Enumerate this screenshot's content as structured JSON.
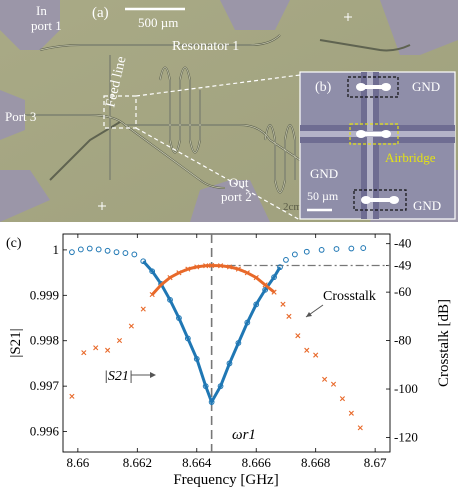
{
  "panel_a": {
    "label": "(a)",
    "scale_bar": "500 µm",
    "labels": {
      "in_port_1": [
        "In",
        "port 1"
      ],
      "resonator_1": "Resonator 1",
      "feed_line": "Feed line",
      "port_3": "Port 3",
      "out_port_2": [
        "Out",
        "port 2"
      ],
      "chip_text": "2cm"
    }
  },
  "panel_b": {
    "label": "(b)",
    "gnd": "GND",
    "airbridge": "Airbridge",
    "scale_bar": "50 µm"
  },
  "panel_c": {
    "label": "(c)"
  },
  "chart_data": {
    "type": "scatter",
    "xlabel": "Frequency [GHz]",
    "ylabel_left": "|S21|",
    "ylabel_right": "Crosstalk [dB]",
    "xlim": [
      8.6595,
      8.6705
    ],
    "ylim_left": [
      0.99555,
      1.00035
    ],
    "ylim_right": [
      -126,
      -36
    ],
    "x_ticks": [
      8.66,
      8.662,
      8.664,
      8.666,
      8.668,
      8.67
    ],
    "x_tick_labels": [
      "8.66",
      "8.662",
      "8.664",
      "8.666",
      "8.668",
      "8.67"
    ],
    "y_left_ticks": [
      0.996,
      0.997,
      0.998,
      0.999,
      1
    ],
    "y_left_tick_labels": [
      "0.996",
      "0.997",
      "0.998",
      "0.999",
      "1"
    ],
    "y_right_ticks": [
      -120,
      -100,
      -80,
      -60,
      -49,
      -40
    ],
    "y_right_tick_labels": [
      "-120",
      "-100",
      "-80",
      "-60",
      "-49",
      "-40"
    ],
    "annotations": {
      "crosstalk": "Crosstalk",
      "s21": "|S21|",
      "omega": "ωr1"
    },
    "resonance_x": 8.6645,
    "crosstalk_peak_db": -49,
    "colors": {
      "s21": "#1f77b4",
      "crosstalk": "#e8692a"
    },
    "series": [
      {
        "name": "|S21|",
        "axis": "left",
        "marker": "circle",
        "points": [
          [
            8.6598,
            0.99995
          ],
          [
            8.6601,
            1.00001
          ],
          [
            8.6604,
            1.00003
          ],
          [
            8.6607,
            1.00001
          ],
          [
            8.661,
            0.99998
          ],
          [
            8.6613,
            0.99995
          ],
          [
            8.6616,
            0.99993
          ],
          [
            8.6619,
            0.9999
          ],
          [
            8.6622,
            0.99975
          ],
          [
            8.6625,
            0.99953
          ],
          [
            8.6628,
            0.99925
          ],
          [
            8.6631,
            0.9989
          ],
          [
            8.6634,
            0.9985
          ],
          [
            8.6637,
            0.99805
          ],
          [
            8.664,
            0.9976
          ],
          [
            8.6643,
            0.997
          ],
          [
            8.6645,
            0.99665
          ],
          [
            8.6648,
            0.997
          ],
          [
            8.6651,
            0.9975
          ],
          [
            8.6654,
            0.99795
          ],
          [
            8.6657,
            0.9984
          ],
          [
            8.666,
            0.9988
          ],
          [
            8.6663,
            0.99912
          ],
          [
            8.6666,
            0.9994
          ],
          [
            8.6668,
            0.99962
          ],
          [
            8.667,
            0.99978
          ],
          [
            8.6673,
            0.9999
          ],
          [
            8.6677,
            0.99996
          ],
          [
            8.6682,
            1.0
          ],
          [
            8.6687,
            1.00002
          ],
          [
            8.6692,
            1.00003
          ],
          [
            8.6696,
            1.00004
          ]
        ]
      },
      {
        "name": "Crosstalk",
        "axis": "right",
        "marker": "x",
        "points": [
          [
            8.6598,
            -103
          ],
          [
            8.6602,
            -85
          ],
          [
            8.6606,
            -83
          ],
          [
            8.661,
            -84
          ],
          [
            8.6614,
            -80
          ],
          [
            8.6618,
            -74
          ],
          [
            8.6622,
            -67
          ],
          [
            8.6625,
            -61
          ],
          [
            8.6628,
            -57
          ],
          [
            8.6631,
            -54
          ],
          [
            8.6634,
            -52
          ],
          [
            8.6637,
            -50.5
          ],
          [
            8.664,
            -49.6
          ],
          [
            8.6643,
            -49.1
          ],
          [
            8.6645,
            -49
          ],
          [
            8.6648,
            -49.1
          ],
          [
            8.6651,
            -49.6
          ],
          [
            8.6654,
            -50.5
          ],
          [
            8.6657,
            -52
          ],
          [
            8.666,
            -54
          ],
          [
            8.6663,
            -57
          ],
          [
            8.6666,
            -60
          ],
          [
            8.6669,
            -65
          ],
          [
            8.6671,
            -70
          ],
          [
            8.6674,
            -78
          ],
          [
            8.6677,
            -84
          ],
          [
            8.668,
            -86
          ],
          [
            8.6683,
            -96
          ],
          [
            8.6686,
            -98
          ],
          [
            8.6689,
            -104
          ],
          [
            8.6692,
            -110
          ],
          [
            8.6695,
            -116
          ]
        ]
      }
    ]
  }
}
